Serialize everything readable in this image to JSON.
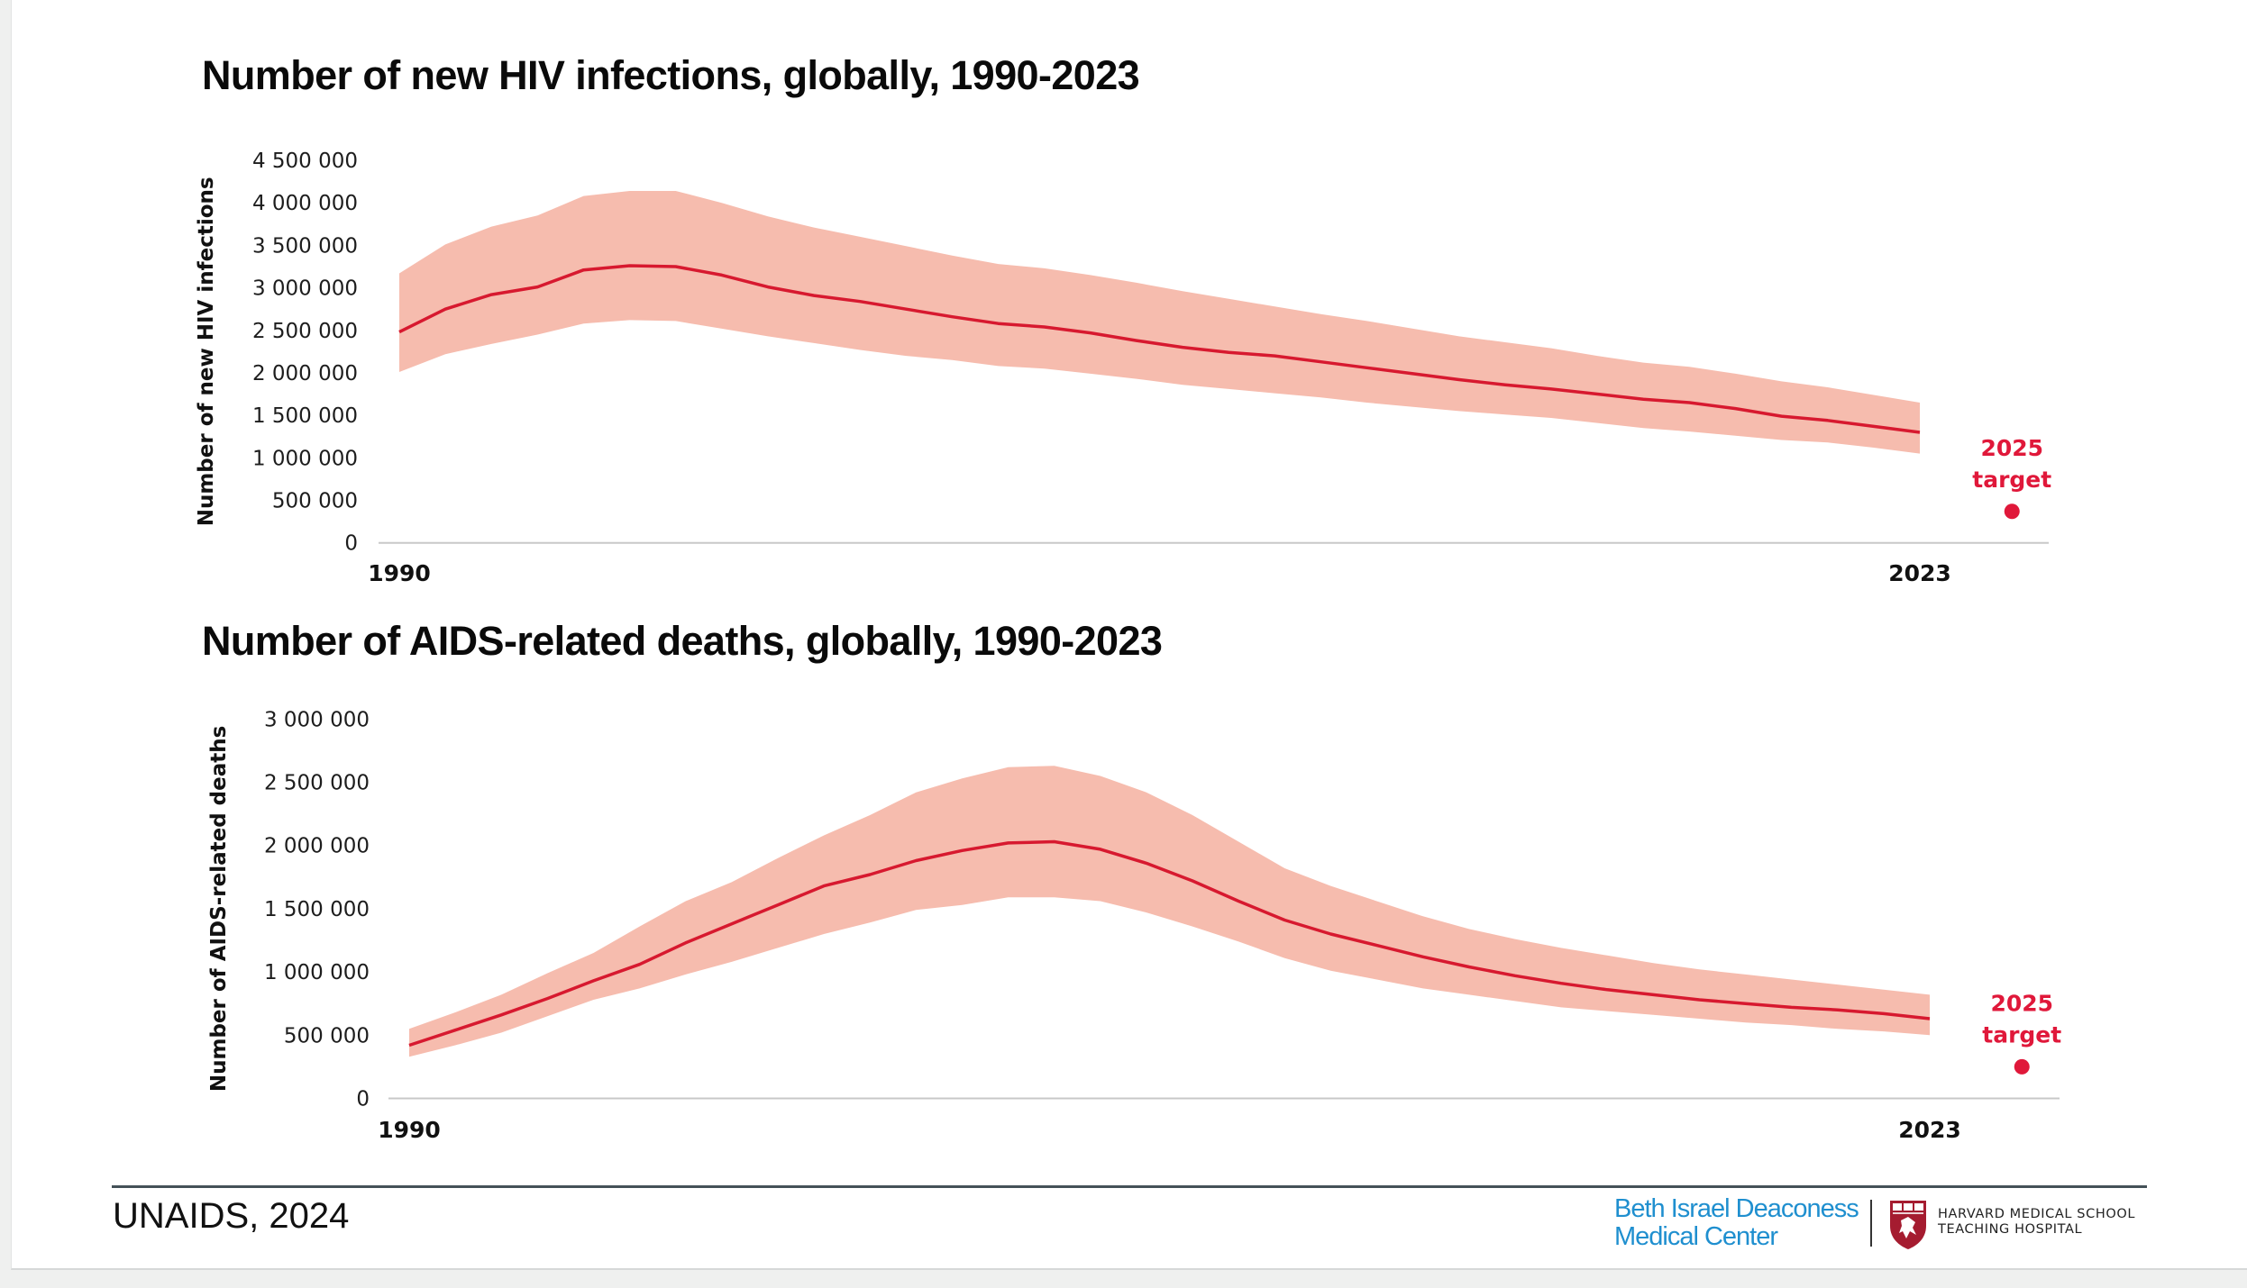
{
  "colors": {
    "line": "#d7192f",
    "band": "#f6bcae",
    "target": "#e0183a",
    "axis": "#c8c8c8",
    "bidmc_blue": "#1f8fcf",
    "harvard_crimson": "#a51c30"
  },
  "footer": {
    "source": "UNAIDS, 2024",
    "bidmc_line1": "Beth Israel Deaconess",
    "bidmc_line2": "Medical Center",
    "hms_line1": "HARVARD MEDICAL SCHOOL",
    "hms_line2": "TEACHING HOSPITAL",
    "shield_icon": "harvard-shield-icon"
  },
  "chart_data": [
    {
      "type": "area",
      "title": "Number of new HIV infections, globally, 1990-2023",
      "xlabel": "",
      "ylabel": "Number of new HIV infections",
      "x_tick_labels": [
        "1990",
        "2023"
      ],
      "y_tick_labels": [
        "0",
        "500 000",
        "1 000 000",
        "1 500 000",
        "2 000 000",
        "2 500 000",
        "3 000 000",
        "3 500 000",
        "4 000 000",
        "4 500 000"
      ],
      "ylim": [
        0,
        4500000
      ],
      "xlim": [
        1990,
        2023
      ],
      "grid": false,
      "x": [
        1990,
        1991,
        1992,
        1993,
        1994,
        1995,
        1996,
        1997,
        1998,
        1999,
        2000,
        2001,
        2002,
        2003,
        2004,
        2005,
        2006,
        2007,
        2008,
        2009,
        2010,
        2011,
        2012,
        2013,
        2014,
        2015,
        2016,
        2017,
        2018,
        2019,
        2020,
        2021,
        2022,
        2023
      ],
      "series": [
        {
          "name": "estimate",
          "kind": "line",
          "values": [
            2480000,
            2750000,
            2920000,
            3010000,
            3210000,
            3260000,
            3250000,
            3150000,
            3010000,
            2910000,
            2840000,
            2750000,
            2660000,
            2580000,
            2540000,
            2470000,
            2380000,
            2300000,
            2240000,
            2200000,
            2130000,
            2060000,
            1990000,
            1920000,
            1860000,
            1810000,
            1750000,
            1690000,
            1650000,
            1580000,
            1490000,
            1440000,
            1370000,
            1300000
          ]
        },
        {
          "name": "upper bound",
          "kind": "band-upper",
          "values": [
            3170000,
            3510000,
            3720000,
            3850000,
            4080000,
            4140000,
            4140000,
            4000000,
            3840000,
            3710000,
            3600000,
            3490000,
            3380000,
            3280000,
            3230000,
            3150000,
            3060000,
            2960000,
            2870000,
            2780000,
            2690000,
            2610000,
            2520000,
            2430000,
            2360000,
            2290000,
            2200000,
            2120000,
            2070000,
            1990000,
            1900000,
            1830000,
            1740000,
            1650000
          ]
        },
        {
          "name": "lower bound",
          "kind": "band-lower",
          "values": [
            2010000,
            2220000,
            2340000,
            2450000,
            2580000,
            2620000,
            2610000,
            2520000,
            2430000,
            2350000,
            2270000,
            2200000,
            2150000,
            2080000,
            2050000,
            1990000,
            1930000,
            1860000,
            1810000,
            1760000,
            1710000,
            1650000,
            1600000,
            1550000,
            1510000,
            1470000,
            1410000,
            1350000,
            1310000,
            1260000,
            1210000,
            1180000,
            1120000,
            1050000
          ]
        }
      ],
      "target": {
        "year": 2025,
        "value": 370000,
        "label_line1": "2025",
        "label_line2": "target"
      }
    },
    {
      "type": "area",
      "title": "Number of AIDS-related deaths, globally, 1990-2023",
      "xlabel": "",
      "ylabel": "Number of AIDS-related deaths",
      "x_tick_labels": [
        "1990",
        "2023"
      ],
      "y_tick_labels": [
        "0",
        "500 000",
        "1 000 000",
        "1 500 000",
        "2 000 000",
        "2 500 000",
        "3 000 000"
      ],
      "ylim": [
        0,
        3000000
      ],
      "xlim": [
        1990,
        2023
      ],
      "grid": false,
      "x": [
        1990,
        1991,
        1992,
        1993,
        1994,
        1995,
        1996,
        1997,
        1998,
        1999,
        2000,
        2001,
        2002,
        2003,
        2004,
        2005,
        2006,
        2007,
        2008,
        2009,
        2010,
        2011,
        2012,
        2013,
        2014,
        2015,
        2016,
        2017,
        2018,
        2019,
        2020,
        2021,
        2022,
        2023
      ],
      "series": [
        {
          "name": "estimate",
          "kind": "line",
          "values": [
            420000,
            540000,
            660000,
            790000,
            930000,
            1060000,
            1230000,
            1380000,
            1530000,
            1680000,
            1770000,
            1880000,
            1960000,
            2020000,
            2030000,
            1970000,
            1860000,
            1720000,
            1560000,
            1410000,
            1300000,
            1210000,
            1120000,
            1040000,
            970000,
            910000,
            860000,
            820000,
            780000,
            750000,
            720000,
            700000,
            670000,
            630000
          ]
        },
        {
          "name": "upper bound",
          "kind": "band-upper",
          "values": [
            550000,
            680000,
            820000,
            990000,
            1150000,
            1360000,
            1560000,
            1710000,
            1900000,
            2080000,
            2240000,
            2420000,
            2530000,
            2620000,
            2630000,
            2550000,
            2420000,
            2240000,
            2030000,
            1820000,
            1680000,
            1560000,
            1440000,
            1340000,
            1260000,
            1190000,
            1130000,
            1070000,
            1020000,
            980000,
            940000,
            900000,
            860000,
            820000
          ]
        },
        {
          "name": "lower bound",
          "kind": "band-lower",
          "values": [
            330000,
            420000,
            520000,
            650000,
            780000,
            870000,
            980000,
            1080000,
            1190000,
            1300000,
            1390000,
            1490000,
            1530000,
            1590000,
            1590000,
            1560000,
            1470000,
            1360000,
            1240000,
            1110000,
            1010000,
            940000,
            870000,
            820000,
            770000,
            720000,
            690000,
            660000,
            630000,
            600000,
            580000,
            550000,
            530000,
            500000
          ]
        }
      ],
      "target": {
        "year": 2025,
        "value": 250000,
        "label_line1": "2025",
        "label_line2": "target"
      }
    }
  ]
}
